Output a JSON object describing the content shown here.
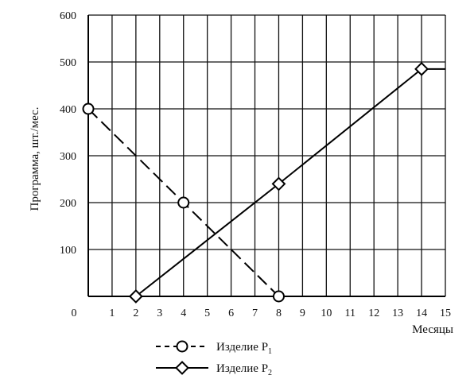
{
  "chart_data": {
    "type": "line",
    "xlabel": "Месяцы",
    "ylabel": "Программа, шт./мес.",
    "xlim": [
      0,
      15
    ],
    "ylim": [
      0,
      600
    ],
    "x_ticks": [
      "0",
      "1",
      "2",
      "3",
      "4",
      "5",
      "6",
      "7",
      "8",
      "9",
      "10",
      "11",
      "12",
      "13",
      "14",
      "15"
    ],
    "y_ticks": [
      "100",
      "200",
      "300",
      "400",
      "500",
      "600"
    ],
    "grid": true,
    "legend_position": "bottom-center",
    "series": [
      {
        "name": "Изделие P",
        "subscript": "1",
        "style": "dashed",
        "marker": "circle",
        "color": "#000000",
        "points": [
          [
            0,
            400
          ],
          [
            4,
            200
          ],
          [
            8,
            0
          ]
        ],
        "line_continues_to_x": 15
      },
      {
        "name": "Изделие P",
        "subscript": "2",
        "style": "solid",
        "marker": "diamond",
        "color": "#000000",
        "points": [
          [
            2,
            0
          ],
          [
            8,
            240
          ],
          [
            14,
            485
          ]
        ],
        "line_continues_to_x": 15
      }
    ]
  }
}
